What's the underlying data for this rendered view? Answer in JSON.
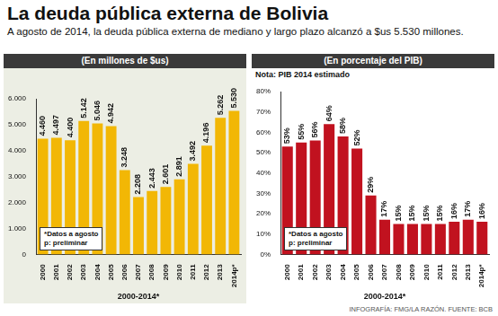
{
  "title": "La deuda pública externa de Bolivia",
  "subtitle": "A agosto de 2014, la deuda pública externa de mediano y largo plazo alcanzó a $us 5.530 millones.",
  "source": "INFOGRAFÍA: FMG/LA RAZÓN. FUENTE: BCB",
  "chart_data": [
    {
      "type": "bar",
      "title": "(En millones de $us)",
      "xlabel": "2000-2014*",
      "annotations": [
        "*Datos a agosto",
        "p: preliminar"
      ],
      "categories": [
        "2000",
        "2001",
        "2002",
        "2003",
        "2004",
        "2005",
        "2006",
        "2007",
        "2008",
        "2009",
        "2010",
        "2011",
        "2012",
        "2013",
        "2014p*"
      ],
      "values": [
        4460,
        4497,
        4400,
        5142,
        5046,
        4942,
        3248,
        2208,
        2443,
        2601,
        2891,
        3492,
        4196,
        5262,
        5530
      ],
      "value_labels": [
        "4.460",
        "4.497",
        "4.400",
        "5.142",
        "5.046",
        "4.942",
        "3.248",
        "2.208",
        "2.443",
        "2.601",
        "2.891",
        "3.492",
        "4.196",
        "5.262",
        "5.530"
      ],
      "color": "#f2b705",
      "ylim": [
        0,
        6000
      ],
      "yticks": [
        0,
        {
          "value": 1000,
          "label": "1.000"
        },
        {
          "value": 2000,
          "label": "2.000"
        },
        {
          "value": 3000,
          "label": "3.000"
        },
        {
          "value": 4000,
          "label": "4.000"
        },
        {
          "value": 5000,
          "label": "5.000"
        },
        {
          "value": 6000,
          "label": "6.000"
        }
      ],
      "grid": false,
      "data_labels": true
    },
    {
      "type": "bar",
      "title": "(En porcentaje del PIB)",
      "note": "Nota: PIB 2014 estimado",
      "xlabel": "2000-2014*",
      "annotations": [
        "*Datos a agosto",
        "p: preliminar"
      ],
      "categories": [
        "2000",
        "2001",
        "2002",
        "2003",
        "2004",
        "2005",
        "2006",
        "2007",
        "2008",
        "2009",
        "2010",
        "2011",
        "2012",
        "2013",
        "2014p*"
      ],
      "values": [
        53,
        55,
        56,
        64,
        58,
        52,
        29,
        17,
        15,
        15,
        15,
        15,
        16,
        17,
        16
      ],
      "value_labels": [
        "53%",
        "55%",
        "56%",
        "64%",
        "58%",
        "52%",
        "29%",
        "17%",
        "15%",
        "15%",
        "15%",
        "15%",
        "16%",
        "17%",
        "16%"
      ],
      "color": "#c1121f",
      "ylim": [
        0,
        80
      ],
      "yticks": [
        {
          "value": 0,
          "label": "0%"
        },
        {
          "value": 10,
          "label": "10%"
        },
        {
          "value": 20,
          "label": "20%"
        },
        {
          "value": 30,
          "label": "30%"
        },
        {
          "value": 40,
          "label": "40%"
        },
        {
          "value": 50,
          "label": "50%"
        },
        {
          "value": 60,
          "label": "60%"
        },
        {
          "value": 70,
          "label": "70%"
        },
        {
          "value": 80,
          "label": "80%"
        }
      ],
      "grid": false,
      "data_labels": true
    }
  ]
}
